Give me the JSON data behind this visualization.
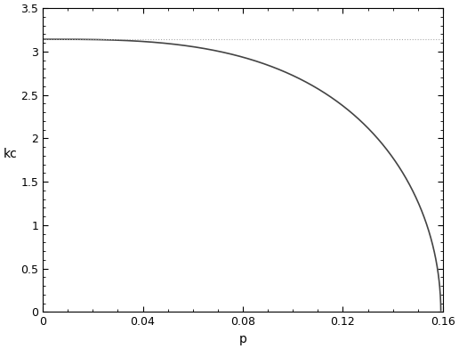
{
  "title": "",
  "xlabel": "p",
  "ylabel": "kc",
  "xlim": [
    0,
    0.16
  ],
  "ylim": [
    0,
    3.5
  ],
  "xticks": [
    0,
    0.04,
    0.08,
    0.12,
    0.16
  ],
  "yticks": [
    0,
    0.5,
    1,
    1.5,
    2,
    2.5,
    3,
    3.5
  ],
  "hline_y": 3.14159265358979,
  "hline_color": "#aaaaaa",
  "hline_style": "dotted",
  "curve_color": "#444444",
  "curve_lw": 1.2,
  "background_color": "#ffffff",
  "p_max": 0.159155,
  "kc0": 3.14159265358979
}
